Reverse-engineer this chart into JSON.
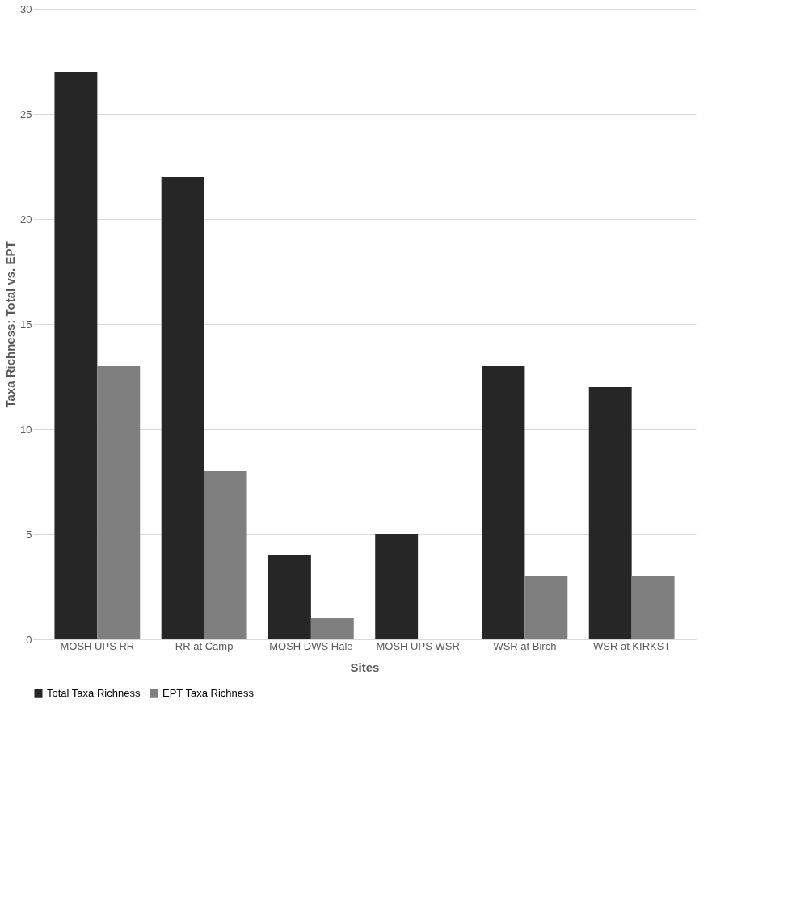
{
  "chart_data": {
    "type": "bar",
    "xlabel": "Sites",
    "ylabel": "Taxa Richness: Total vs. EPT",
    "categories": [
      "MOSH UPS RR",
      "RR at Camp",
      "MOSH DWS Hale",
      "MOSH UPS WSR",
      "WSR at Birch",
      "WSR at KIRKST"
    ],
    "series": [
      {
        "name": "Total Taxa Richness",
        "color": "#262626",
        "values": [
          27,
          22,
          4,
          5,
          13,
          12
        ]
      },
      {
        "name": "EPT Taxa Richness",
        "color": "#7f7f7f",
        "values": [
          13,
          8,
          1,
          0,
          3,
          3
        ]
      }
    ],
    "ylim": [
      0,
      30
    ],
    "yticks": [
      0,
      5,
      10,
      15,
      20,
      25,
      30
    ],
    "grid": "y",
    "legend": "bottom"
  }
}
